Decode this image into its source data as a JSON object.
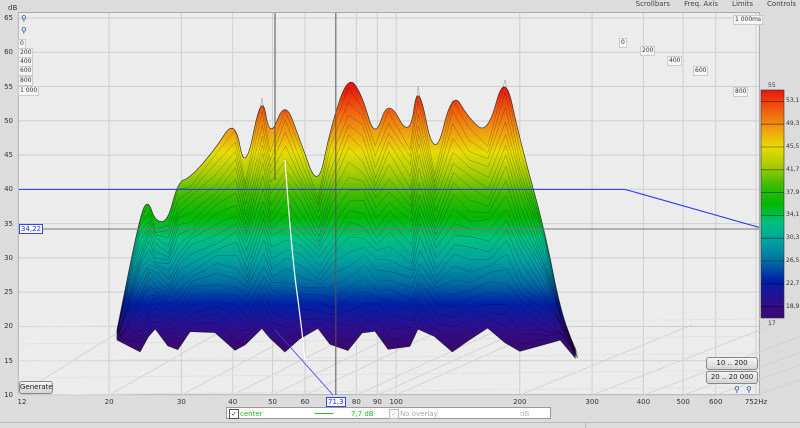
{
  "toolbar": {
    "items": [
      "Scrollbars",
      "Freq. Axis",
      "Limits",
      "Controls"
    ]
  },
  "y_unit": "dB",
  "depth_labels_left": [
    "0",
    "200",
    "400",
    "600",
    "800",
    "1 000"
  ],
  "depth_labels_right": [
    "1 000ms",
    "0",
    "200",
    "400",
    "600",
    "800",
    "1 000"
  ],
  "cursor": {
    "y_readout": "34,22",
    "x_readout": "71,3"
  },
  "buttons": {
    "generate": "Generate",
    "range_low": "10 .. 200",
    "range_full": "20 .. 20 000"
  },
  "legend": {
    "checked": "✓",
    "name": "center",
    "value": "7,7 dB",
    "overlay": "No overlay",
    "overlay_unit": "dB",
    "series_color": "#2db82d"
  },
  "colorbar": {
    "top_label": "55",
    "bottom_label": "17",
    "ticks": [
      "53,1",
      "49,3",
      "45,5",
      "41,7",
      "37,9",
      "34,1",
      "30,3",
      "26,5",
      "22,7",
      "18,9"
    ],
    "colors": [
      "#e8160c",
      "#f05a10",
      "#f09a10",
      "#e8dc00",
      "#a8cc00",
      "#3cbb00",
      "#00b800",
      "#00c080",
      "#00a0a0",
      "#0070a0",
      "#0020a8",
      "#2a1090",
      "#3a0870"
    ]
  },
  "chart_data": {
    "type": "waterfall",
    "xlabel": "",
    "ylabel": "dB",
    "x_unit": "Hz",
    "x_scale": "log",
    "xlim": [
      12,
      752
    ],
    "ylim": [
      10,
      65
    ],
    "zlim_ms": [
      0,
      1000
    ],
    "x_ticks": [
      "12",
      "20",
      "30",
      "40",
      "50",
      "60",
      "80",
      "90",
      "100",
      "200",
      "300",
      "400",
      "500",
      "600",
      "752Hz"
    ],
    "x_tick_values": [
      12,
      20,
      30,
      40,
      50,
      60,
      80,
      90,
      100,
      200,
      300,
      400,
      500,
      600,
      752
    ],
    "y_ticks": [
      "65",
      "60",
      "55",
      "50",
      "45",
      "40",
      "35",
      "30",
      "25",
      "20",
      "15",
      "10"
    ],
    "y_tick_values": [
      65,
      60,
      55,
      50,
      45,
      40,
      35,
      30,
      25,
      20,
      15,
      10
    ],
    "grid": true,
    "cursor_lines": {
      "frequency_hz": 71.3,
      "level_db": 34.22,
      "reference_db": 40
    },
    "front_envelope": {
      "x": [
        20.9,
        23.8,
        24.9,
        25.9,
        27.8,
        29.4,
        31.5,
        36.2,
        40.5,
        42.9,
        47.1,
        49.3,
        53.6,
        58.3,
        64.5,
        69.0,
        76.3,
        82.6,
        88.8,
        95.6,
        108,
        113,
        124,
        137,
        150,
        167,
        184,
        200,
        230,
        251,
        273
      ],
      "y": [
        19.5,
        36.3,
        38.5,
        35.3,
        35.3,
        41.1,
        41.7,
        45.8,
        50.4,
        42.1,
        54.5,
        47.2,
        53.1,
        47.2,
        39.9,
        48.7,
        56.7,
        53.8,
        47.2,
        53.4,
        47.2,
        56.3,
        43.6,
        54.5,
        50.4,
        48.0,
        57.4,
        47.2,
        34.1,
        22.4,
        16.6
      ]
    }
  }
}
